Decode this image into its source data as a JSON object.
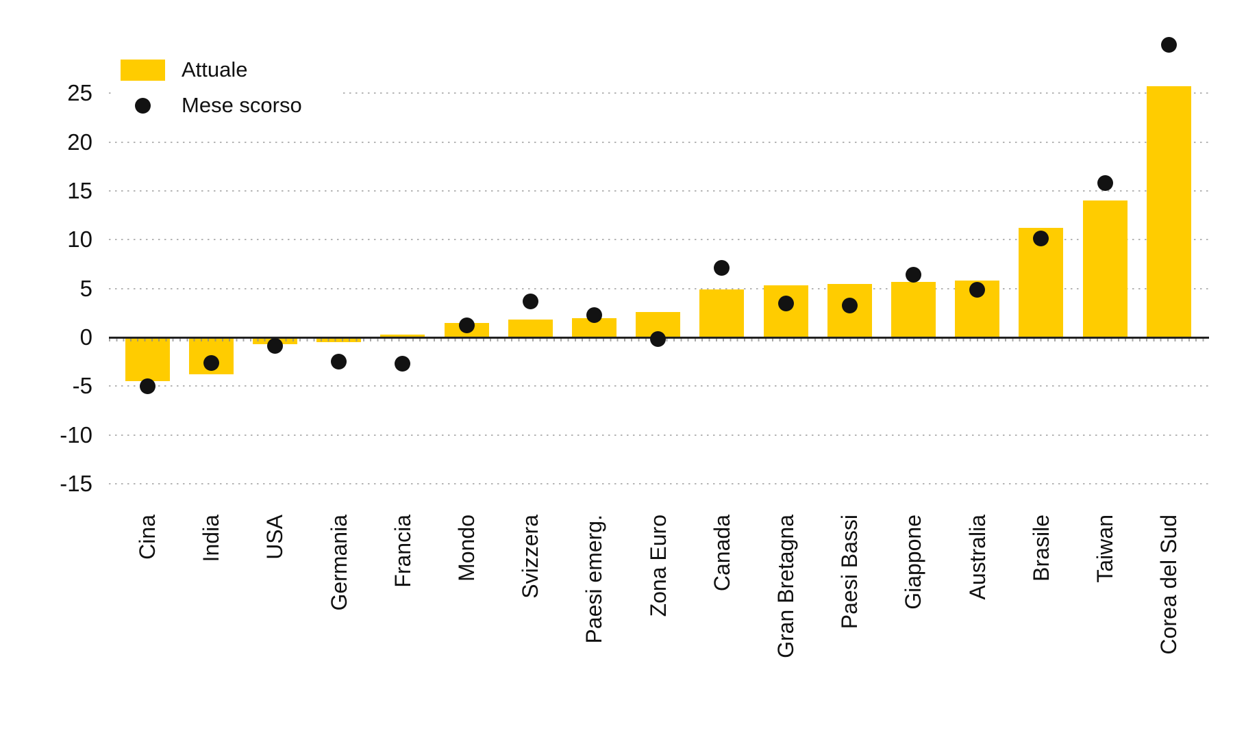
{
  "colors": {
    "bar_yellow": "#ffcc00",
    "dot_black": "#121212",
    "grid_gray": "#b4b4b4",
    "zero_axis": "#222222",
    "text": "#111111"
  },
  "y_axis": {
    "tick_labels": [
      "25",
      "20",
      "15",
      "10",
      "5",
      "0",
      "-5",
      "-10",
      "-15"
    ]
  },
  "chart_data": {
    "type": "bar",
    "title": "",
    "xlabel": "",
    "ylabel": "",
    "categories": [
      "Cina",
      "India",
      "USA",
      "Germania",
      "Francia",
      "Mondo",
      "Svizzera",
      "Paesi emerg.",
      "Zona Euro",
      "Canada",
      "Gran Bretagna",
      "Paesi Bassi",
      "Giappone",
      "Australia",
      "Brasile",
      "Taiwan",
      "Corea del Sud"
    ],
    "series": [
      {
        "name": "Attuale",
        "type": "bar",
        "color": "#ffcc00",
        "values": [
          -4.5,
          -3.8,
          -0.7,
          -0.5,
          0.1,
          1.5,
          1.8,
          2.0,
          2.6,
          4.9,
          5.3,
          5.5,
          5.7,
          5.8,
          11.2,
          14.0,
          25.7
        ]
      },
      {
        "name": "Mese scorso",
        "type": "scatter",
        "color": "#121212",
        "values": [
          -5.0,
          -2.6,
          -0.9,
          -2.5,
          -2.7,
          1.2,
          3.7,
          2.3,
          -0.2,
          7.1,
          3.5,
          3.3,
          6.4,
          4.9,
          10.1,
          15.8,
          30.0
        ]
      }
    ],
    "yticks": [
      -15,
      -10,
      -5,
      0,
      5,
      10,
      15,
      20,
      25
    ],
    "ylim": [
      -16.6,
      30.7
    ],
    "grid": "horizontal-dotted",
    "legend_position": "top-left"
  }
}
